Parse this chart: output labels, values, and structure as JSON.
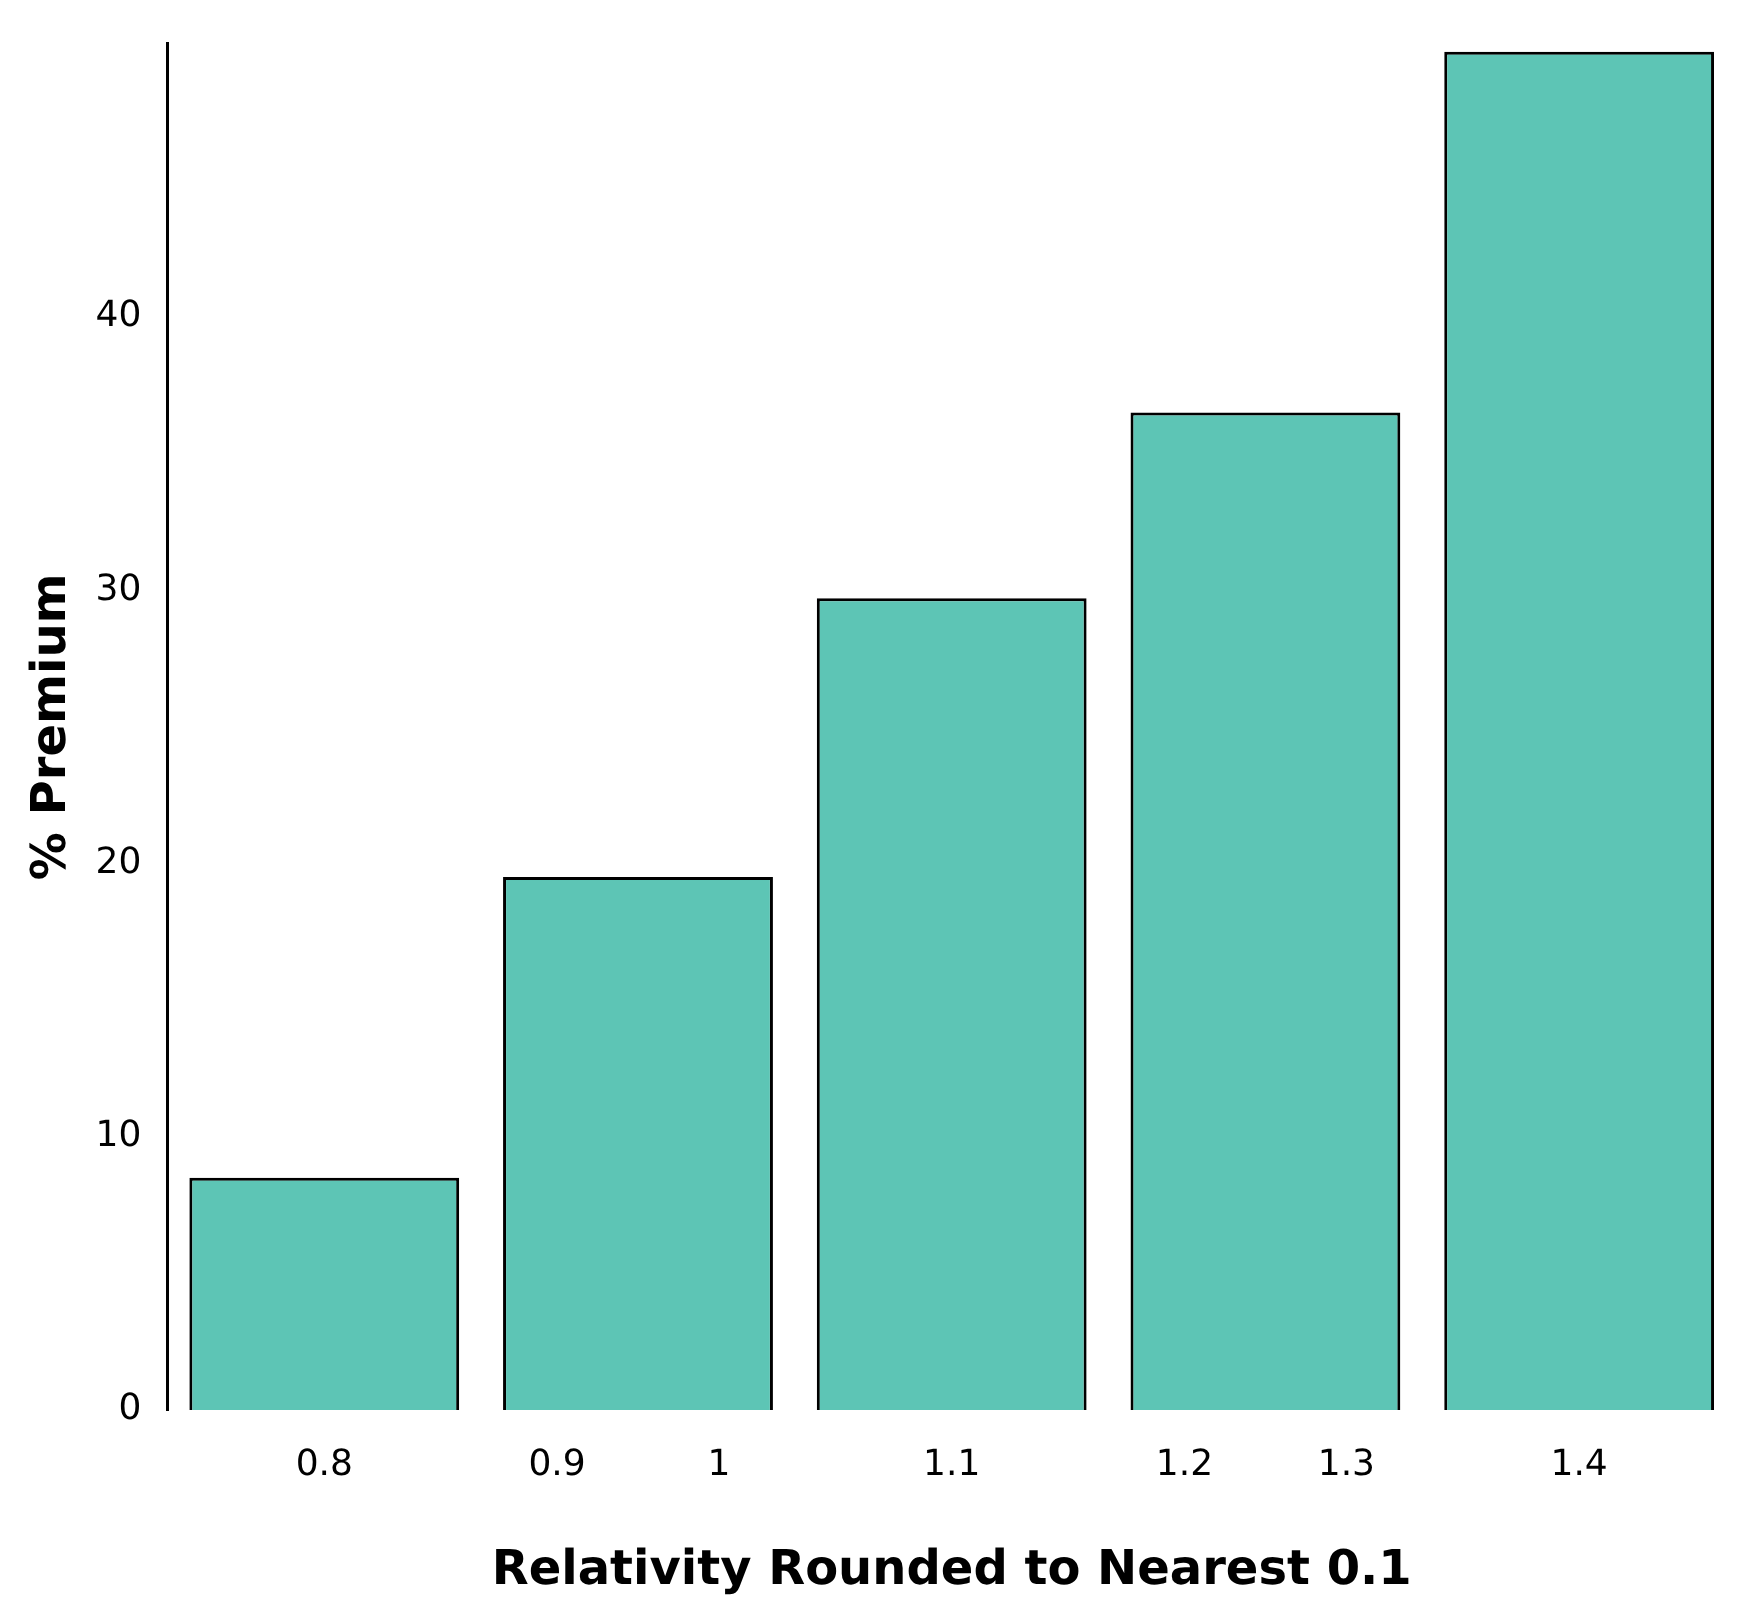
{
  "chart_data": {
    "type": "bar",
    "xlabel": "Relativity Rounded to Nearest 0.1",
    "ylabel": "% Premium",
    "categories": [
      "0.8",
      "0.9 1",
      "1.1",
      "1.2 1.3",
      "1.4"
    ],
    "values": [
      8.5,
      19.5,
      29.7,
      36.5,
      49.7
    ],
    "color": "#5dc5b5",
    "ylim": [
      0,
      50
    ],
    "yticks": [
      0,
      10,
      20,
      30,
      40
    ],
    "grid": false
  }
}
